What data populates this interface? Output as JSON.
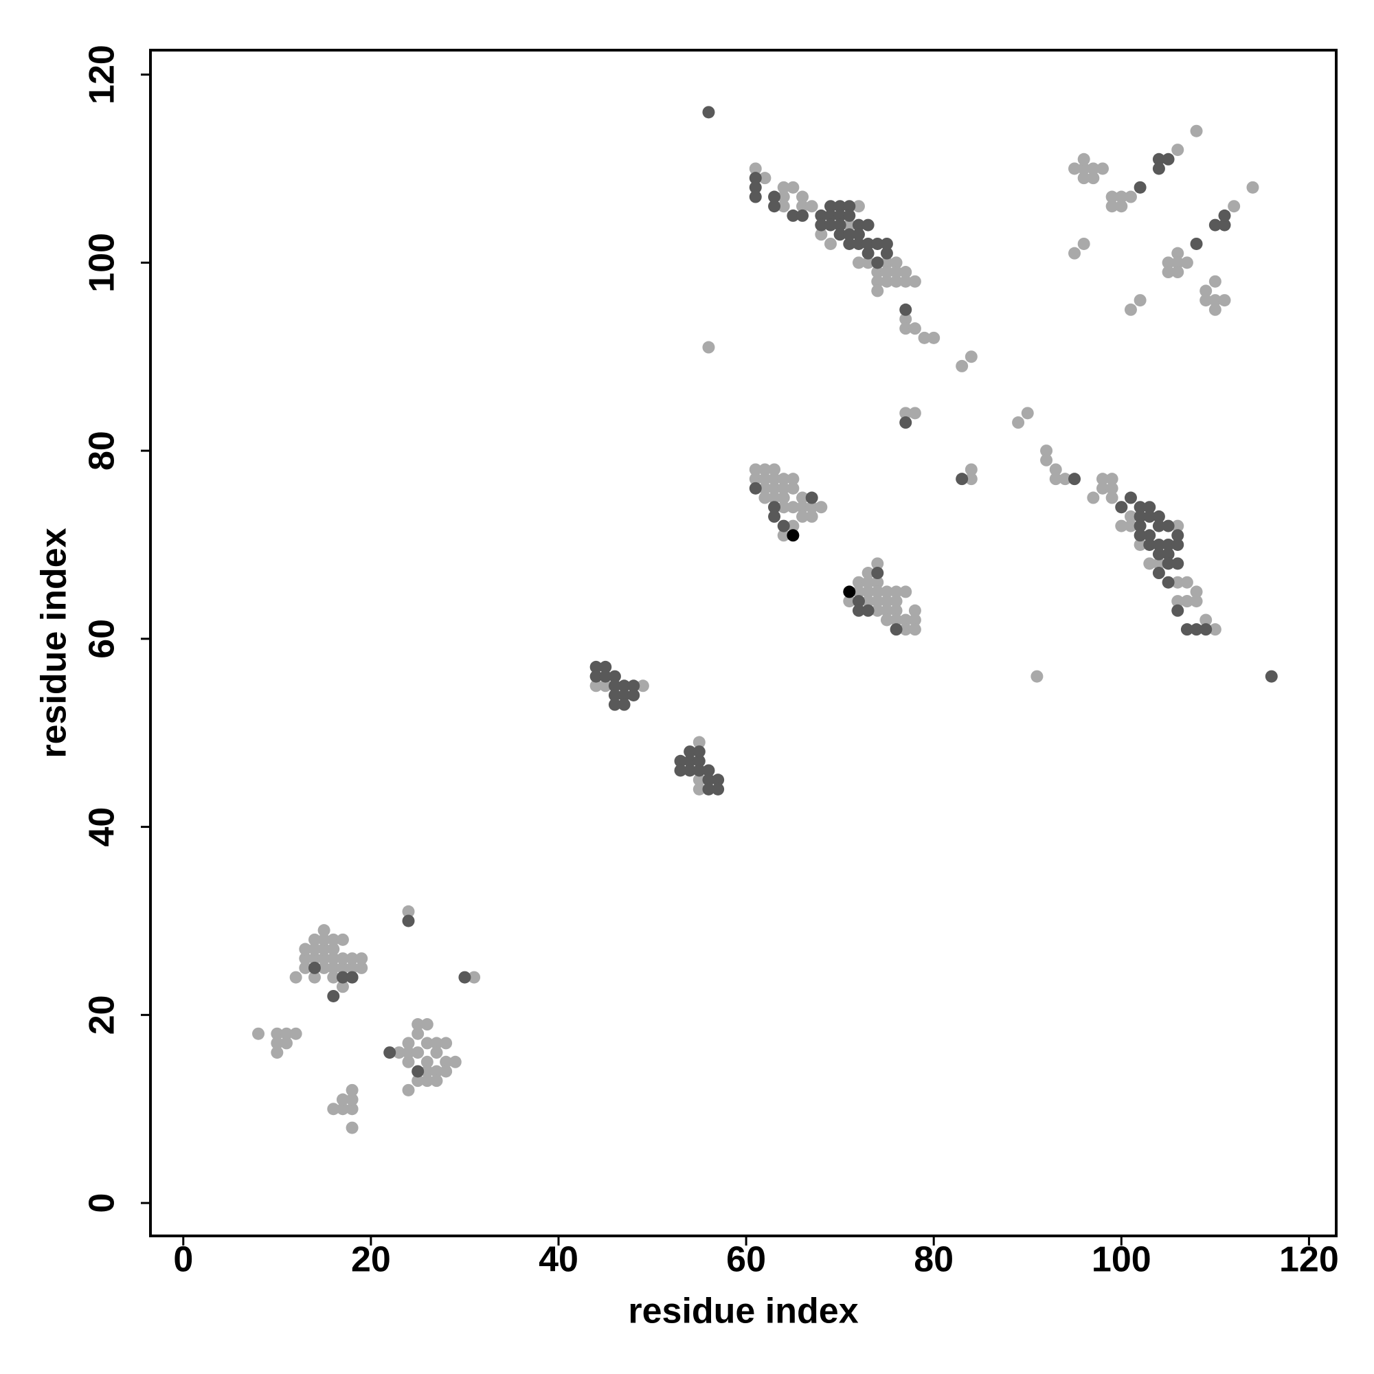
{
  "chart_data": {
    "type": "scatter",
    "xlabel": "residue index",
    "ylabel": "residue index",
    "xlim": [
      -3.5,
      122.9
    ],
    "ylim": [
      -3.5,
      122.6
    ],
    "xticks": [
      0,
      20,
      40,
      60,
      80,
      100,
      120
    ],
    "yticks": [
      0,
      20,
      40,
      60,
      80,
      100,
      120
    ],
    "series": [
      {
        "color": "#a9a9a9",
        "x": [
          12,
          13,
          13,
          13,
          14,
          14,
          14,
          14,
          15,
          15,
          15,
          15,
          15,
          16,
          16,
          16,
          16,
          16,
          17,
          17,
          17,
          17,
          18,
          18,
          18,
          19,
          19,
          23,
          24,
          24,
          24,
          25,
          25,
          25,
          25,
          26,
          26,
          26,
          26,
          26,
          27,
          27,
          27,
          27,
          28,
          28,
          28,
          29,
          24,
          31,
          8,
          10,
          11,
          12,
          10,
          11,
          10,
          24,
          18,
          16,
          17,
          18,
          17,
          18,
          18,
          56,
          91,
          44,
          45,
          49,
          55,
          55,
          55,
          61,
          61,
          62,
          62,
          62,
          62,
          63,
          63,
          63,
          63,
          63,
          64,
          64,
          64,
          64,
          64,
          65,
          65,
          65,
          65,
          66,
          66,
          66,
          67,
          67,
          68,
          71,
          72,
          72,
          73,
          73,
          73,
          73,
          74,
          74,
          74,
          74,
          74,
          75,
          75,
          75,
          75,
          76,
          76,
          76,
          76,
          77,
          77,
          77,
          78,
          78,
          78,
          83,
          84,
          77,
          78,
          89,
          90,
          84,
          84,
          77,
          77,
          78,
          79,
          80,
          92,
          92,
          93,
          93,
          94,
          110,
          61,
          62,
          64,
          64,
          65,
          66,
          64,
          66,
          67,
          68,
          68,
          69,
          70,
          71,
          72,
          72,
          73,
          74,
          74,
          75,
          75,
          75,
          76,
          76,
          76,
          77,
          77,
          78,
          74,
          97,
          98,
          98,
          99,
          99,
          99,
          100,
          100,
          101,
          101,
          102,
          103,
          104,
          105,
          106,
          106,
          107,
          107,
          108,
          106,
          107,
          108,
          109,
          95,
          96,
          97,
          98,
          96,
          96,
          97,
          99,
          100,
          101,
          99,
          100,
          106,
          108,
          112,
          114,
          95,
          96,
          106,
          106,
          105,
          105,
          106,
          107,
          101,
          102,
          109,
          110,
          109,
          110,
          111,
          110
        ],
        "values": [
          24,
          25,
          26,
          27,
          26,
          27,
          28,
          24,
          25,
          26,
          27,
          28,
          29,
          24,
          25,
          26,
          27,
          28,
          23,
          25,
          26,
          28,
          25,
          26,
          24,
          25,
          26,
          16,
          17,
          16,
          15,
          18,
          19,
          16,
          13,
          19,
          17,
          15,
          14,
          13,
          17,
          16,
          14,
          13,
          17,
          15,
          14,
          15,
          31,
          24,
          18,
          18,
          18,
          18,
          17,
          17,
          16,
          12,
          8,
          10,
          10,
          10,
          11,
          11,
          12,
          91,
          56,
          55,
          55,
          55,
          49,
          45,
          44,
          78,
          77,
          78,
          77,
          76,
          75,
          78,
          77,
          76,
          75,
          74,
          77,
          76,
          75,
          74,
          71,
          77,
          76,
          74,
          72,
          75,
          74,
          73,
          74,
          73,
          74,
          64,
          66,
          65,
          67,
          66,
          65,
          64,
          68,
          66,
          65,
          64,
          63,
          65,
          64,
          63,
          62,
          65,
          64,
          63,
          62,
          65,
          62,
          61,
          63,
          62,
          61,
          89,
          90,
          84,
          84,
          83,
          84,
          77,
          78,
          94,
          93,
          93,
          92,
          92,
          80,
          79,
          78,
          77,
          77,
          61,
          110,
          109,
          108,
          107,
          108,
          107,
          106,
          106,
          106,
          103,
          104,
          102,
          103,
          104,
          100,
          106,
          100,
          98,
          99,
          100,
          99,
          98,
          100,
          99,
          98,
          99,
          98,
          98,
          97,
          75,
          77,
          76,
          77,
          76,
          75,
          74,
          72,
          73,
          72,
          70,
          68,
          68,
          69,
          72,
          66,
          66,
          64,
          65,
          64,
          64,
          64,
          62,
          110,
          110,
          110,
          110,
          111,
          109,
          109,
          107,
          107,
          107,
          106,
          106,
          112,
          114,
          106,
          108,
          101,
          102,
          101,
          100,
          100,
          99,
          99,
          100,
          95,
          96,
          97,
          98,
          96,
          96,
          96,
          95
        ]
      },
      {
        "color": "#595959",
        "x": [
          56,
          116,
          24,
          30,
          22,
          16,
          14,
          25,
          17,
          18,
          44,
          45,
          44,
          45,
          46,
          46,
          47,
          48,
          46,
          47,
          48,
          46,
          47,
          53,
          54,
          55,
          54,
          55,
          53,
          54,
          55,
          56,
          56,
          57,
          56,
          57,
          61,
          63,
          63,
          64,
          67,
          72,
          72,
          73,
          74,
          76,
          77,
          83,
          77,
          95,
          61,
          61,
          61,
          63,
          63,
          65,
          66,
          68,
          68,
          69,
          69,
          69,
          70,
          70,
          70,
          70,
          71,
          71,
          71,
          71,
          72,
          72,
          72,
          73,
          73,
          73,
          74,
          74,
          75,
          75,
          100,
          101,
          102,
          102,
          102,
          103,
          103,
          103,
          103,
          104,
          104,
          104,
          104,
          105,
          105,
          105,
          105,
          106,
          106,
          106,
          102,
          104,
          105,
          106,
          107,
          108,
          109,
          102,
          104,
          105,
          104,
          110,
          111,
          111,
          108
        ],
        "values": [
          116,
          56,
          30,
          24,
          16,
          22,
          25,
          14,
          24,
          24,
          57,
          57,
          56,
          56,
          56,
          55,
          55,
          55,
          54,
          54,
          54,
          53,
          53,
          47,
          47,
          47,
          48,
          48,
          46,
          46,
          46,
          46,
          45,
          45,
          44,
          44,
          76,
          74,
          73,
          72,
          75,
          64,
          63,
          63,
          67,
          61,
          83,
          77,
          95,
          77,
          109,
          108,
          107,
          107,
          106,
          105,
          105,
          105,
          104,
          106,
          105,
          104,
          106,
          105,
          104,
          103,
          106,
          105,
          103,
          102,
          104,
          103,
          102,
          104,
          102,
          101,
          102,
          100,
          101,
          102,
          74,
          75,
          74,
          73,
          72,
          74,
          73,
          71,
          70,
          73,
          72,
          70,
          69,
          72,
          70,
          69,
          68,
          71,
          70,
          68,
          71,
          67,
          66,
          63,
          61,
          61,
          61,
          108,
          111,
          111,
          110,
          104,
          104,
          105,
          102
        ]
      },
      {
        "color": "#000000",
        "x": [
          65,
          71
        ],
        "values": [
          71,
          65
        ]
      }
    ]
  }
}
